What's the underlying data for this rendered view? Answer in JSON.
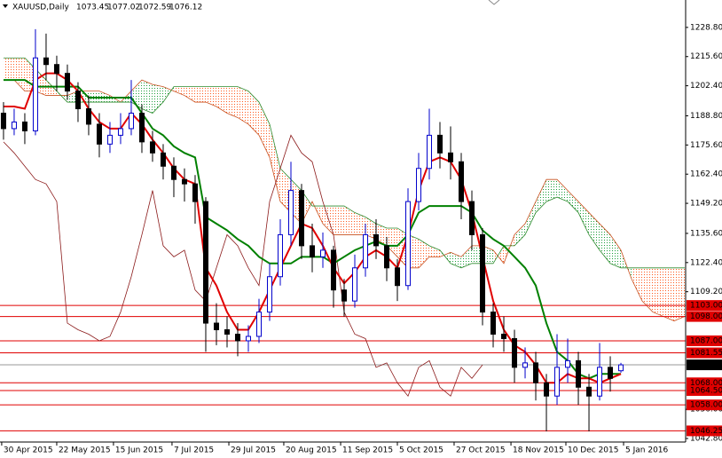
{
  "chart_data": {
    "type": "candlestick",
    "title": "XAUUSD,Daily",
    "xlim": [
      -0.33,
      64.08
    ],
    "ylim": [
      1041.2,
      1241.2
    ],
    "xticks": [
      {
        "value": -0.17,
        "label": "30 Apr 2015"
      },
      {
        "value": 5,
        "label": "22 May 2015"
      },
      {
        "value": 10.33,
        "label": "15 Jun 2015"
      },
      {
        "value": 15.83,
        "label": "7 Jul 2015"
      },
      {
        "value": 21.17,
        "label": "29 Jul 2015"
      },
      {
        "value": 26.33,
        "label": "20 Aug 2015"
      },
      {
        "value": 31.67,
        "label": "11 Sep 2015"
      },
      {
        "value": 37,
        "label": "5 Oct 2015"
      },
      {
        "value": 42.33,
        "label": "27 Oct 2015"
      },
      {
        "value": 47.67,
        "label": "18 Nov 2015"
      },
      {
        "value": 52.83,
        "label": "10 Dec 2015"
      },
      {
        "value": 58.25,
        "label": "5 Jan 2016"
      }
    ],
    "yticks": [
      {
        "value": 1228.8,
        "label": "1228.80"
      },
      {
        "value": 1215.6,
        "label": "1215.60"
      },
      {
        "value": 1202.4,
        "label": "1202.40"
      },
      {
        "value": 1188.8,
        "label": "1188.80"
      },
      {
        "value": 1175.6,
        "label": "1175.60"
      },
      {
        "value": 1162.4,
        "label": "1162.40"
      },
      {
        "value": 1149.2,
        "label": "1149.20"
      },
      {
        "value": 1135.6,
        "label": "1135.60"
      },
      {
        "value": 1122.4,
        "label": "1122.40"
      },
      {
        "value": 1109.2,
        "label": "1109.20"
      },
      {
        "value": 1056,
        "label": "1056.00"
      },
      {
        "value": 1042.8,
        "label": "1042.80"
      }
    ],
    "up_color": "#0000cc",
    "down_color": "#000000",
    "candles": [
      [
        1190,
        1195,
        1178,
        1183
      ],
      [
        1183,
        1192,
        1180,
        1186
      ],
      [
        1186,
        1190,
        1176,
        1182
      ],
      [
        1182,
        1228,
        1180,
        1215
      ],
      [
        1215,
        1226,
        1205,
        1212
      ],
      [
        1212,
        1216,
        1200,
        1208
      ],
      [
        1208,
        1212,
        1196,
        1200
      ],
      [
        1200,
        1204,
        1186,
        1192
      ],
      [
        1192,
        1198,
        1180,
        1185
      ],
      [
        1185,
        1190,
        1170,
        1176
      ],
      [
        1176,
        1186,
        1172,
        1180
      ],
      [
        1180,
        1190,
        1176,
        1183
      ],
      [
        1183,
        1205,
        1180,
        1190
      ],
      [
        1190,
        1194,
        1172,
        1177
      ],
      [
        1177,
        1182,
        1168,
        1172
      ],
      [
        1172,
        1176,
        1160,
        1166
      ],
      [
        1166,
        1170,
        1152,
        1160
      ],
      [
        1160,
        1165,
        1150,
        1158
      ],
      [
        1158,
        1162,
        1140,
        1150
      ],
      [
        1150,
        1152,
        1082,
        1095
      ],
      [
        1095,
        1104,
        1085,
        1092
      ],
      [
        1092,
        1098,
        1084,
        1090
      ],
      [
        1090,
        1095,
        1080,
        1087
      ],
      [
        1087,
        1094,
        1082,
        1089
      ],
      [
        1089,
        1106,
        1086,
        1100
      ],
      [
        1100,
        1122,
        1096,
        1116
      ],
      [
        1116,
        1142,
        1112,
        1135
      ],
      [
        1135,
        1168,
        1130,
        1155
      ],
      [
        1155,
        1158,
        1124,
        1130
      ],
      [
        1130,
        1140,
        1118,
        1125
      ],
      [
        1125,
        1136,
        1120,
        1128
      ],
      [
        1128,
        1130,
        1102,
        1110
      ],
      [
        1110,
        1115,
        1098,
        1105
      ],
      [
        1105,
        1126,
        1102,
        1120
      ],
      [
        1120,
        1140,
        1116,
        1135
      ],
      [
        1135,
        1142,
        1124,
        1130
      ],
      [
        1130,
        1134,
        1114,
        1120
      ],
      [
        1120,
        1124,
        1105,
        1112
      ],
      [
        1112,
        1156,
        1110,
        1150
      ],
      [
        1150,
        1172,
        1146,
        1165
      ],
      [
        1165,
        1192,
        1160,
        1180
      ],
      [
        1180,
        1186,
        1165,
        1172
      ],
      [
        1172,
        1184,
        1160,
        1168
      ],
      [
        1168,
        1172,
        1142,
        1150
      ],
      [
        1150,
        1155,
        1128,
        1135
      ],
      [
        1135,
        1138,
        1094,
        1100
      ],
      [
        1100,
        1104,
        1084,
        1090
      ],
      [
        1090,
        1098,
        1082,
        1088
      ],
      [
        1088,
        1092,
        1068,
        1075
      ],
      [
        1075,
        1084,
        1070,
        1077
      ],
      [
        1077,
        1082,
        1060,
        1068
      ],
      [
        1068,
        1072,
        1046,
        1062
      ],
      [
        1062,
        1090,
        1058,
        1075
      ],
      [
        1075,
        1088,
        1068,
        1078
      ],
      [
        1078,
        1082,
        1058,
        1066
      ],
      [
        1066,
        1072,
        1046,
        1062
      ],
      [
        1062,
        1086,
        1060,
        1075
      ],
      [
        1075,
        1080,
        1064,
        1070
      ],
      [
        1073.45,
        1077.02,
        1072.59,
        1076.12
      ]
    ],
    "tenkan": {
      "color": "#e00000",
      "values": [
        1193,
        1193,
        1192,
        1205,
        1208,
        1208,
        1205,
        1200,
        1192,
        1186,
        1183,
        1183,
        1190,
        1185,
        1178,
        1172,
        1165,
        1160,
        1158,
        1120,
        1112,
        1100,
        1092,
        1092,
        1100,
        1110,
        1120,
        1130,
        1140,
        1138,
        1130,
        1120,
        1113,
        1118,
        1125,
        1128,
        1125,
        1120,
        1135,
        1155,
        1168,
        1170,
        1168,
        1160,
        1145,
        1125,
        1105,
        1092,
        1085,
        1082,
        1076,
        1068,
        1068,
        1072,
        1070,
        1070,
        1068,
        1070,
        1072
      ]
    },
    "kijun": {
      "color": "#008000",
      "values": [
        1205,
        1205,
        1205,
        1202,
        1202,
        1202,
        1202,
        1202,
        1197,
        1197,
        1197,
        1197,
        1197,
        1190,
        1183,
        1180,
        1175,
        1172,
        1170,
        1143,
        1140,
        1137,
        1133,
        1130,
        1125,
        1122,
        1122,
        1122,
        1125,
        1125,
        1125,
        1122,
        1125,
        1128,
        1130,
        1132,
        1130,
        1130,
        1135,
        1145,
        1148,
        1148,
        1148,
        1148,
        1145,
        1137,
        1133,
        1130,
        1125,
        1120,
        1112,
        1095,
        1082,
        1078,
        1072,
        1070,
        1072,
        1072,
        1072
      ]
    },
    "chikou_color": "#8b1a1a",
    "span_a": {
      "color": "#c8501e",
      "values": [
        1205,
        1205,
        1200,
        1200,
        1198,
        1198,
        1198,
        1200,
        1200,
        1200,
        1198,
        1195,
        1200,
        1205,
        1203,
        1202,
        1200,
        1198,
        1195,
        1195,
        1193,
        1190,
        1188,
        1185,
        1180,
        1170,
        1150,
        1145,
        1140,
        1150,
        1140,
        1135,
        1135,
        1135,
        1135,
        1133,
        1130,
        1125,
        1120,
        1120,
        1125,
        1125,
        1127,
        1125,
        1130,
        1130,
        1128,
        1122,
        1135,
        1140,
        1150,
        1160,
        1160,
        1155,
        1150,
        1145,
        1140,
        1135,
        1128,
        1115,
        1105,
        1100,
        1098,
        1096,
        1098
      ]
    },
    "span_b": {
      "color": "#2e8b2e",
      "values": [
        1215,
        1215,
        1215,
        1210,
        1205,
        1200,
        1195,
        1195,
        1195,
        1195,
        1195,
        1195,
        1195,
        1192,
        1190,
        1195,
        1202,
        1202,
        1202,
        1202,
        1202,
        1202,
        1202,
        1200,
        1195,
        1185,
        1165,
        1160,
        1155,
        1148,
        1148,
        1148,
        1148,
        1145,
        1143,
        1140,
        1138,
        1138,
        1135,
        1133,
        1130,
        1128,
        1122,
        1120,
        1122,
        1122,
        1122,
        1130,
        1130,
        1135,
        1145,
        1150,
        1152,
        1150,
        1145,
        1135,
        1128,
        1122,
        1120,
        1120,
        1120,
        1120,
        1120,
        1120,
        1120
      ]
    },
    "cloud_bear_color": "#ff5a1e",
    "cloud_bull_color": "#1e9e3c",
    "level_color": "#e00000",
    "price_line_color": "#9a9a9a",
    "levels": [
      {
        "value": 1103,
        "label": "1103.00"
      },
      {
        "value": 1098,
        "label": "1098.00"
      },
      {
        "value": 1087,
        "label": "1087.00"
      },
      {
        "value": 1081.55,
        "label": "1081.55"
      },
      {
        "value": 1068,
        "label": "1068.00"
      },
      {
        "value": 1064.5,
        "label": "1064.50"
      },
      {
        "value": 1058,
        "label": "1058.00"
      },
      {
        "value": 1046.25,
        "label": "1046.25"
      }
    ]
  }
}
